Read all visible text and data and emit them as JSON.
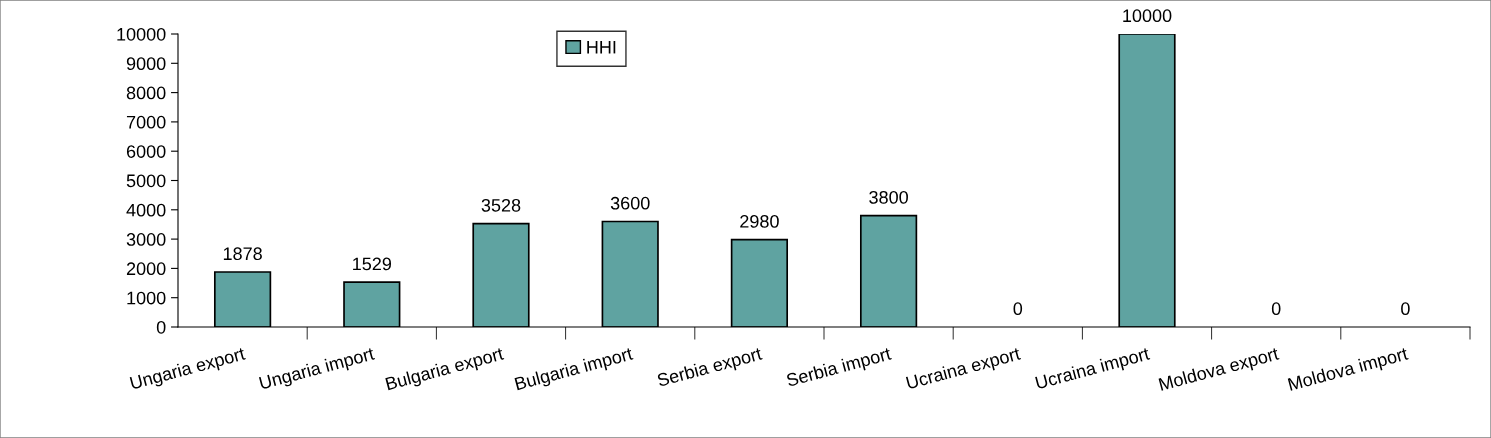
{
  "chart_data": {
    "type": "bar",
    "categories": [
      "Ungaria export",
      "Ungaria import",
      "Bulgaria export",
      "Bulgaria import",
      "Serbia export",
      "Serbia import",
      "Ucraina export",
      "Ucraina import",
      "Moldova export",
      "Moldova import"
    ],
    "series": [
      {
        "name": "HHI",
        "color": "#5fa3a1",
        "values": [
          1878,
          1529,
          3528,
          3600,
          2980,
          3800,
          0,
          10000,
          0,
          0
        ]
      }
    ],
    "ylim": [
      0,
      10000
    ],
    "yticks": [
      0,
      1000,
      2000,
      3000,
      4000,
      5000,
      6000,
      7000,
      8000,
      9000,
      10000
    ],
    "data_labels": true,
    "grid": false,
    "legend": "top"
  }
}
